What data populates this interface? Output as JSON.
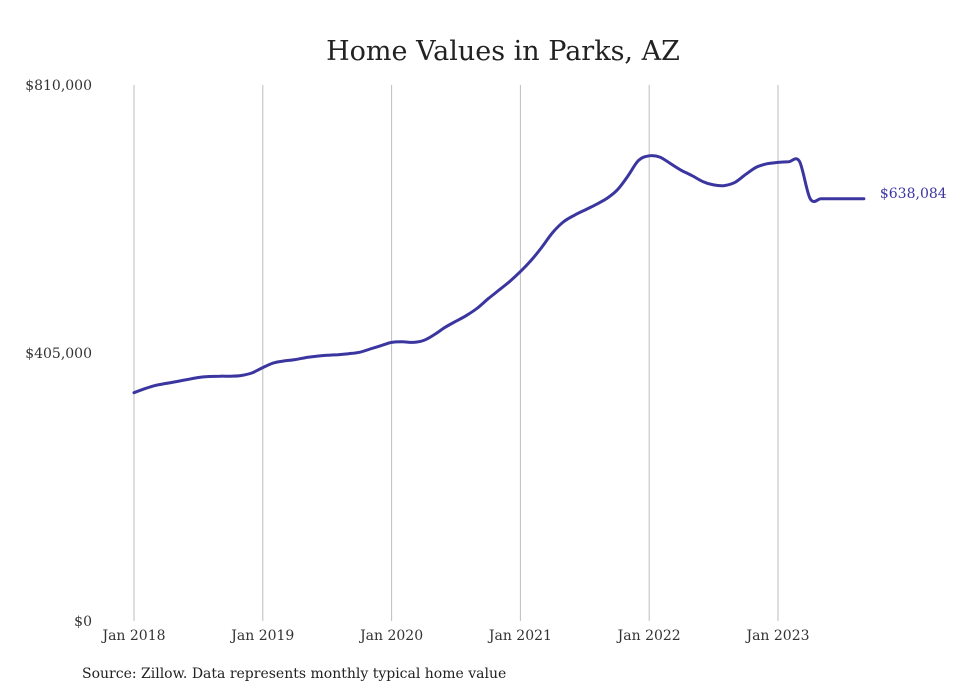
{
  "chart_data": {
    "type": "line",
    "title": "Home Values in Parks, AZ",
    "xlabel": "",
    "ylabel": "",
    "ylim": [
      0,
      810000
    ],
    "y_ticks": [
      0,
      405000,
      810000
    ],
    "y_tick_labels": [
      "$0",
      "$405,000",
      "$810,000"
    ],
    "x_ticks": [
      "2018-01",
      "2019-01",
      "2020-01",
      "2021-01",
      "2022-01",
      "2023-01"
    ],
    "x_tick_labels": [
      "Jan 2018",
      "Jan 2019",
      "Jan 2020",
      "Jan 2021",
      "Jan 2022",
      "Jan 2023"
    ],
    "grid": "vertical",
    "line_color": "#3b35a0",
    "series": [
      {
        "x": [
          "2018-01",
          "2018-02",
          "2018-03",
          "2018-04",
          "2018-05",
          "2018-06",
          "2018-07",
          "2018-08",
          "2018-09",
          "2018-10",
          "2018-11",
          "2018-12",
          "2019-01",
          "2019-02",
          "2019-03",
          "2019-04",
          "2019-05",
          "2019-06",
          "2019-07",
          "2019-08",
          "2019-09",
          "2019-10",
          "2019-11",
          "2019-12",
          "2020-01",
          "2020-02",
          "2020-03",
          "2020-04",
          "2020-05",
          "2020-06",
          "2020-07",
          "2020-08",
          "2020-09",
          "2020-10",
          "2020-11",
          "2020-12",
          "2021-01",
          "2021-02",
          "2021-03",
          "2021-04",
          "2021-05",
          "2021-06",
          "2021-07",
          "2021-08",
          "2021-09",
          "2021-10",
          "2021-11",
          "2021-12",
          "2022-01",
          "2022-02",
          "2022-03",
          "2022-04",
          "2022-05",
          "2022-06",
          "2022-07",
          "2022-08",
          "2022-09",
          "2022-10",
          "2022-11",
          "2022-12",
          "2023-01",
          "2023-02",
          "2023-03",
          "2023-04",
          "2023-05",
          "2023-06",
          "2023-07",
          "2023-08",
          "2023-09"
        ],
        "y": [
          345000,
          351000,
          356000,
          359000,
          362000,
          365000,
          368000,
          369500,
          370000,
          370000,
          371000,
          375000,
          383000,
          390000,
          393000,
          395000,
          398000,
          400000,
          401500,
          402500,
          404000,
          406000,
          411000,
          416000,
          421000,
          422000,
          421000,
          424000,
          433000,
          444000,
          453000,
          462000,
          473000,
          487000,
          500000,
          513000,
          528000,
          545000,
          565000,
          587000,
          603000,
          613000,
          621000,
          629000,
          638000,
          651000,
          672000,
          696000,
          703000,
          701000,
          691000,
          681000,
          673000,
          664000,
          659000,
          658000,
          663000,
          675000,
          686000,
          691000,
          693000,
          694000,
          694500,
          638084,
          638084,
          638084,
          638084,
          638084,
          638084
        ],
        "end_label": "$638,084"
      }
    ],
    "source": "Source: Zillow. Data represents monthly typical home value"
  }
}
